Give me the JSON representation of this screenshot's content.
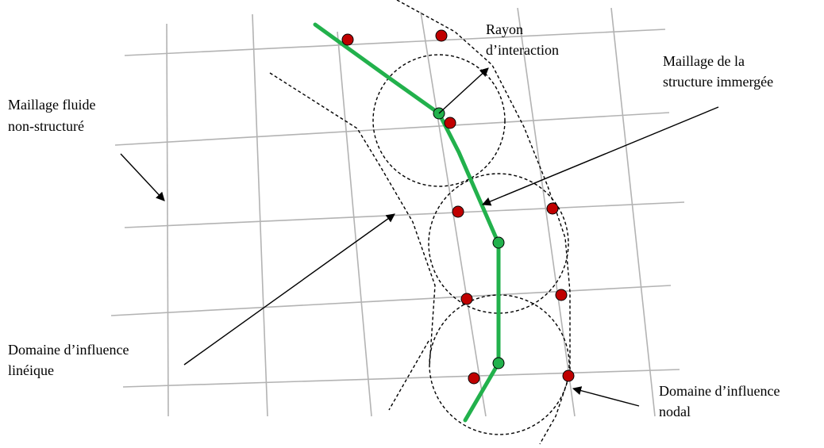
{
  "labels": {
    "rayon_line1": "Rayon",
    "rayon_line2": "d’interaction",
    "maillage_struct_line1": "Maillage de la",
    "maillage_struct_line2": "structure immergée",
    "maillage_fluide_line1": "Maillage fluide",
    "maillage_fluide_line2": "non-structuré",
    "domaine_lin_line1": "Domaine d’influence",
    "domaine_lin_line2": "linéique",
    "domaine_nodal_line1": "Domaine d’influence",
    "domaine_nodal_line2": "nodal"
  },
  "colors": {
    "mesh": "#b3b3b3",
    "structure": "#22b14c",
    "fluid_node": "#c00000",
    "structure_node": "#22b14c",
    "outline": "#000000"
  }
}
